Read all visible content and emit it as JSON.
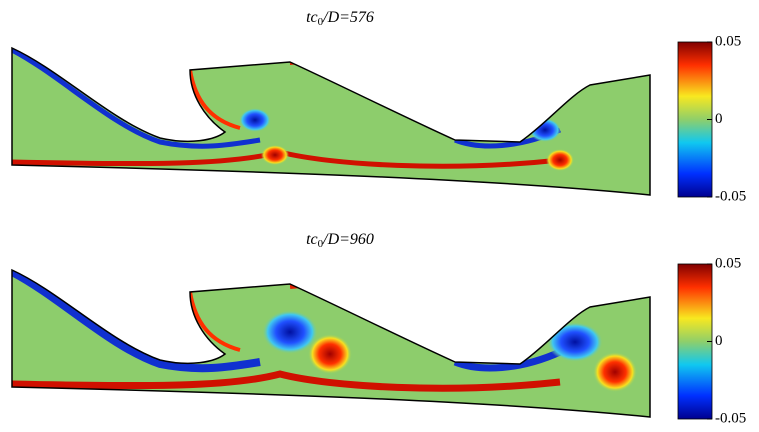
{
  "panels": [
    {
      "title": {
        "main": "tc",
        "subscript": "0",
        "rest": "/D=576"
      },
      "colorbar": {
        "lim": [
          -0.05,
          0.05
        ],
        "ticks": [
          -0.05,
          0,
          0.05
        ]
      }
    },
    {
      "title": {
        "main": "tc",
        "subscript": "0",
        "rest": "/D=960"
      },
      "colorbar": {
        "lim": [
          -0.05,
          0.05
        ],
        "ticks": [
          -0.05,
          0,
          0.05
        ]
      }
    }
  ]
}
